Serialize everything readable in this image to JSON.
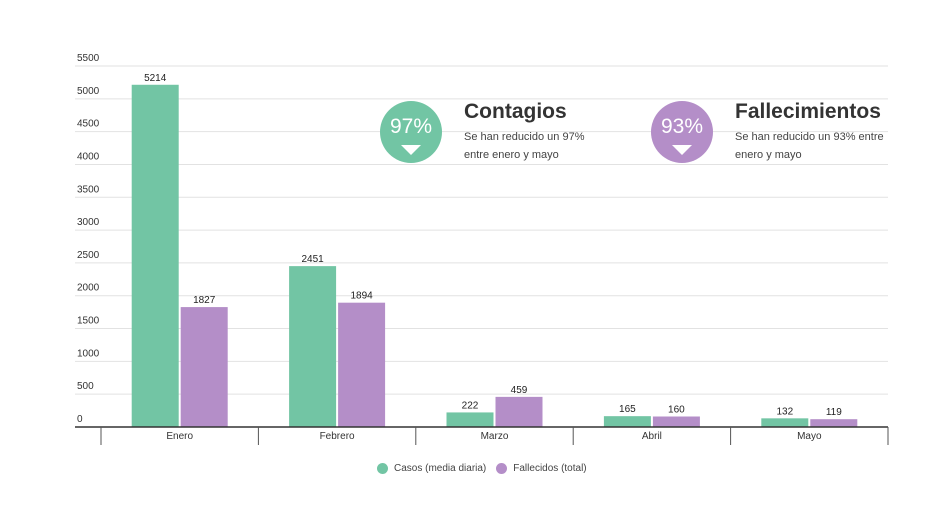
{
  "chart_data": {
    "type": "bar",
    "categories": [
      "Enero",
      "Febrero",
      "Marzo",
      "Abril",
      "Mayo"
    ],
    "series": [
      {
        "name": "Casos (media diaria)",
        "values": [
          5214,
          2451,
          222,
          165,
          132
        ],
        "color": "#72c5a4"
      },
      {
        "name": "Fallecidos (total)",
        "values": [
          1827,
          1894,
          459,
          160,
          119
        ],
        "color": "#b48ec8"
      }
    ],
    "ylim": [
      0,
      5500
    ],
    "yticks": [
      0,
      500,
      1000,
      1500,
      2000,
      2500,
      3000,
      3500,
      4000,
      4500,
      5000,
      5500
    ],
    "grid": true,
    "legend_position": "bottom"
  },
  "callouts": [
    {
      "value": "97%",
      "title": "Contagios",
      "description": "Se han reducido un 97% entre enero y mayo",
      "color": "#72c5a4",
      "icon": "triangle-down-icon"
    },
    {
      "value": "93%",
      "title": "Fallecimientos",
      "description": "Se han reducido un 93% entre enero y mayo",
      "color": "#b48ec8",
      "icon": "triangle-down-icon"
    }
  ]
}
